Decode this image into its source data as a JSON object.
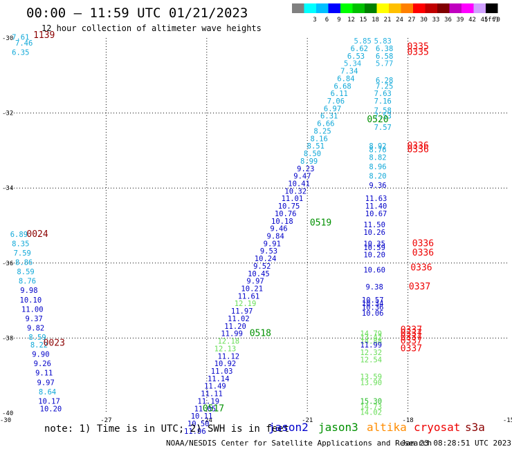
{
  "header": {
    "title": "00:00 – 11:59 UTC 01/21/2023",
    "subtitle": "12 hour collection of altimeter wave heights"
  },
  "scale": {
    "unit": "(ft)",
    "bins": [
      {
        "label": "",
        "color": "#808080"
      },
      {
        "label": "3",
        "color": "#00ffff"
      },
      {
        "label": "6",
        "color": "#00c0ff"
      },
      {
        "label": "9",
        "color": "#0000ff"
      },
      {
        "label": "12",
        "color": "#00ff00"
      },
      {
        "label": "15",
        "color": "#00c000"
      },
      {
        "label": "18",
        "color": "#008000"
      },
      {
        "label": "21",
        "color": "#ffff00"
      },
      {
        "label": "24",
        "color": "#ffc000"
      },
      {
        "label": "27",
        "color": "#ff8000"
      },
      {
        "label": "30",
        "color": "#ff0000"
      },
      {
        "label": "33",
        "color": "#c00000"
      },
      {
        "label": "36",
        "color": "#800000"
      },
      {
        "label": "39",
        "color": "#c000c0"
      },
      {
        "label": "42",
        "color": "#ff00ff"
      },
      {
        "label": "45",
        "color": "#d0a0ff"
      },
      {
        "label": "70",
        "color": "#000000"
      }
    ]
  },
  "footer": {
    "note": "note: 1) Time is in UTC; 2) SWH is in feet",
    "credit": "NOAA/NESDIS Center for Satellite Applications and Research",
    "timestamp": "Jan 23 08:28:51 UTC 2023",
    "legend": [
      {
        "name": "jason2",
        "color": "#0000cc"
      },
      {
        "name": "jason3",
        "color": "#009000"
      },
      {
        "name": "altika",
        "color": "#ff8c00"
      },
      {
        "name": "cryosat",
        "color": "#ee0000"
      },
      {
        "name": "s3a",
        "color": "#8b0000"
      }
    ]
  },
  "chart_data": {
    "type": "scatter",
    "title": "12 hour collection of altimeter wave heights",
    "xlim": [
      -30,
      -15
    ],
    "ylim": [
      -40,
      -30
    ],
    "xticks": [
      "-30",
      "-27",
      "-24",
      "-21",
      "-18",
      "-15"
    ],
    "yticks": [
      "-30",
      "-32",
      "-34",
      "-36",
      "-38",
      "-40"
    ],
    "grid": true,
    "time_labels": [
      {
        "text": "1139",
        "x": -28.85,
        "y": -30.0,
        "color": "#8b0000"
      },
      {
        "text": "0024",
        "x": -29.05,
        "y": -35.3,
        "color": "#8b0000"
      },
      {
        "text": "0023",
        "x": -28.55,
        "y": -38.2,
        "color": "#8b0000"
      },
      {
        "text": "0335",
        "x": -17.7,
        "y": -30.3,
        "color": "#ee0000"
      },
      {
        "text": "0335",
        "x": -17.7,
        "y": -30.45,
        "color": "#ee0000"
      },
      {
        "text": "0336",
        "x": -17.7,
        "y": -32.95,
        "color": "#ee0000"
      },
      {
        "text": "0336",
        "x": -17.7,
        "y": -33.05,
        "color": "#ee0000"
      },
      {
        "text": "0336",
        "x": -17.55,
        "y": -35.55,
        "color": "#ee0000"
      },
      {
        "text": "0336",
        "x": -17.55,
        "y": -35.8,
        "color": "#ee0000"
      },
      {
        "text": "0336",
        "x": -17.6,
        "y": -36.2,
        "color": "#ee0000"
      },
      {
        "text": "0337",
        "x": -17.65,
        "y": -36.7,
        "color": "#ee0000"
      },
      {
        "text": "0337",
        "x": -17.9,
        "y": -37.85,
        "color": "#ee0000"
      },
      {
        "text": "0337",
        "x": -17.9,
        "y": -37.95,
        "color": "#ee0000"
      },
      {
        "text": "0337",
        "x": -17.9,
        "y": -38.05,
        "color": "#ee0000"
      },
      {
        "text": "0337",
        "x": -17.9,
        "y": -38.15,
        "color": "#ee0000"
      },
      {
        "text": "0337",
        "x": -17.9,
        "y": -38.35,
        "color": "#ee0000"
      },
      {
        "text": "0520",
        "x": -18.9,
        "y": -32.25,
        "color": "#009000"
      },
      {
        "text": "0519",
        "x": -20.6,
        "y": -35.0,
        "color": "#009000"
      },
      {
        "text": "0518",
        "x": -22.4,
        "y": -37.95,
        "color": "#009000"
      },
      {
        "text": "0517",
        "x": -23.8,
        "y": -39.95,
        "color": "#009000"
      }
    ],
    "series": [
      {
        "name": "jason2",
        "color_key": "swh",
        "points": [
          {
            "x": -29.55,
            "y": -30.05,
            "v": "7.61"
          },
          {
            "x": -29.45,
            "y": -30.2,
            "v": "7.46"
          },
          {
            "x": -29.55,
            "y": -30.45,
            "v": "6.35"
          },
          {
            "x": -29.6,
            "y": -35.3,
            "v": "6.89"
          },
          {
            "x": -29.55,
            "y": -35.55,
            "v": "8.35"
          },
          {
            "x": -29.5,
            "y": -35.8,
            "v": "7.59"
          },
          {
            "x": -29.45,
            "y": -36.05,
            "v": "8.86"
          },
          {
            "x": -29.4,
            "y": -36.3,
            "v": "8.59"
          },
          {
            "x": -29.35,
            "y": -36.55,
            "v": "8.76"
          },
          {
            "x": -29.3,
            "y": -36.8,
            "v": "9.98"
          },
          {
            "x": -29.25,
            "y": -37.05,
            "v": "10.10"
          },
          {
            "x": -29.2,
            "y": -37.3,
            "v": "11.00"
          },
          {
            "x": -29.15,
            "y": -37.55,
            "v": "9.37"
          },
          {
            "x": -29.1,
            "y": -37.8,
            "v": "9.82"
          },
          {
            "x": -29.05,
            "y": -38.05,
            "v": "8.59"
          },
          {
            "x": -29.0,
            "y": -38.25,
            "v": "8.22"
          },
          {
            "x": -28.95,
            "y": -38.5,
            "v": "9.90"
          },
          {
            "x": -28.9,
            "y": -38.75,
            "v": "9.26"
          },
          {
            "x": -28.85,
            "y": -39.0,
            "v": "9.11"
          },
          {
            "x": -28.8,
            "y": -39.25,
            "v": "9.97"
          },
          {
            "x": -28.75,
            "y": -39.5,
            "v": "8.64"
          },
          {
            "x": -28.7,
            "y": -39.75,
            "v": "10.17"
          },
          {
            "x": -28.65,
            "y": -39.95,
            "v": "10.20"
          }
        ]
      },
      {
        "name": "jason3",
        "color_key": "swh",
        "points": [
          {
            "x": -19.35,
            "y": -30.15,
            "v": "5.85"
          },
          {
            "x": -19.45,
            "y": -30.35,
            "v": "6.62"
          },
          {
            "x": -19.55,
            "y": -30.55,
            "v": "6.53"
          },
          {
            "x": -19.65,
            "y": -30.75,
            "v": "5.34"
          },
          {
            "x": -19.75,
            "y": -30.95,
            "v": "7.34"
          },
          {
            "x": -19.85,
            "y": -31.15,
            "v": "6.84"
          },
          {
            "x": -19.95,
            "y": -31.35,
            "v": "6.68"
          },
          {
            "x": -20.05,
            "y": -31.55,
            "v": "6.11"
          },
          {
            "x": -20.15,
            "y": -31.75,
            "v": "7.06"
          },
          {
            "x": -20.25,
            "y": -31.95,
            "v": "6.97"
          },
          {
            "x": -20.35,
            "y": -32.15,
            "v": "6.31"
          },
          {
            "x": -20.45,
            "y": -32.35,
            "v": "6.66"
          },
          {
            "x": -20.55,
            "y": -32.55,
            "v": "8.25"
          },
          {
            "x": -20.65,
            "y": -32.75,
            "v": "8.16"
          },
          {
            "x": -20.75,
            "y": -32.95,
            "v": "8.51"
          },
          {
            "x": -20.85,
            "y": -33.15,
            "v": "8.50"
          },
          {
            "x": -20.95,
            "y": -33.35,
            "v": "8.99"
          },
          {
            "x": -21.05,
            "y": -33.55,
            "v": "9.23"
          },
          {
            "x": -21.15,
            "y": -33.75,
            "v": "9.47"
          },
          {
            "x": -21.25,
            "y": -33.95,
            "v": "10.41"
          },
          {
            "x": -21.35,
            "y": -34.15,
            "v": "10.32"
          },
          {
            "x": -21.45,
            "y": -34.35,
            "v": "11.01"
          },
          {
            "x": -21.55,
            "y": -34.55,
            "v": "10.75"
          },
          {
            "x": -21.65,
            "y": -34.75,
            "v": "10.76"
          },
          {
            "x": -21.75,
            "y": -34.95,
            "v": "10.18"
          },
          {
            "x": -21.85,
            "y": -35.15,
            "v": "9.46"
          },
          {
            "x": -21.95,
            "y": -35.35,
            "v": "9.84"
          },
          {
            "x": -22.05,
            "y": -35.55,
            "v": "9.91"
          },
          {
            "x": -22.15,
            "y": -35.75,
            "v": "9.53"
          },
          {
            "x": -22.25,
            "y": -35.95,
            "v": "10.24"
          },
          {
            "x": -22.35,
            "y": -36.15,
            "v": "9.52"
          },
          {
            "x": -22.45,
            "y": -36.35,
            "v": "10.45"
          },
          {
            "x": -22.55,
            "y": -36.55,
            "v": "9.97"
          },
          {
            "x": -22.65,
            "y": -36.75,
            "v": "10.21"
          },
          {
            "x": -22.75,
            "y": -36.95,
            "v": "11.61"
          },
          {
            "x": -22.85,
            "y": -37.15,
            "v": "12.19"
          },
          {
            "x": -22.95,
            "y": -37.35,
            "v": "11.97"
          },
          {
            "x": -23.05,
            "y": -37.55,
            "v": "11.02"
          },
          {
            "x": -23.15,
            "y": -37.75,
            "v": "11.20"
          },
          {
            "x": -23.25,
            "y": -37.95,
            "v": "11.99"
          },
          {
            "x": -23.35,
            "y": -38.15,
            "v": "12.18"
          },
          {
            "x": -23.45,
            "y": -38.35,
            "v": "12.13"
          },
          {
            "x": -23.35,
            "y": -38.55,
            "v": "11.12"
          },
          {
            "x": -23.45,
            "y": -38.75,
            "v": "10.92"
          },
          {
            "x": -23.55,
            "y": -38.95,
            "v": "11.03"
          },
          {
            "x": -23.65,
            "y": -39.15,
            "v": "11.14"
          },
          {
            "x": -23.75,
            "y": -39.35,
            "v": "11.49"
          },
          {
            "x": -23.85,
            "y": -39.55,
            "v": "11.11"
          },
          {
            "x": -23.95,
            "y": -39.75,
            "v": "11.19"
          },
          {
            "x": -24.05,
            "y": -39.95,
            "v": "11.05"
          },
          {
            "x": -24.15,
            "y": -40.15,
            "v": "10.11"
          },
          {
            "x": -24.25,
            "y": -40.35,
            "v": "10.50"
          },
          {
            "x": -24.35,
            "y": -40.55,
            "v": "11.96"
          }
        ]
      },
      {
        "name": "cryosat",
        "color_key": "swh",
        "points": [
          {
            "x": -18.75,
            "y": -30.15,
            "v": "5.83"
          },
          {
            "x": -18.7,
            "y": -30.35,
            "v": "6.38"
          },
          {
            "x": -18.7,
            "y": -30.55,
            "v": "6.58"
          },
          {
            "x": -18.7,
            "y": -30.75,
            "v": "5.77"
          },
          {
            "x": -18.7,
            "y": -31.2,
            "v": "6.28"
          },
          {
            "x": -18.7,
            "y": -31.35,
            "v": "7.25"
          },
          {
            "x": -18.75,
            "y": -31.55,
            "v": "7.63"
          },
          {
            "x": -18.75,
            "y": -31.75,
            "v": "7.16"
          },
          {
            "x": -18.75,
            "y": -32.0,
            "v": "7.58"
          },
          {
            "x": -18.75,
            "y": -32.15,
            "v": "7.53"
          },
          {
            "x": -18.75,
            "y": -32.45,
            "v": "7.57"
          },
          {
            "x": -18.9,
            "y": -32.95,
            "v": "8.92"
          },
          {
            "x": -18.9,
            "y": -33.05,
            "v": "8.76"
          },
          {
            "x": -18.9,
            "y": -33.25,
            "v": "8.82"
          },
          {
            "x": -18.9,
            "y": -33.5,
            "v": "8.96"
          },
          {
            "x": -18.9,
            "y": -33.75,
            "v": "8.20"
          },
          {
            "x": -18.9,
            "y": -34.0,
            "v": "9.36"
          },
          {
            "x": -18.95,
            "y": -34.35,
            "v": "11.63"
          },
          {
            "x": -18.95,
            "y": -34.55,
            "v": "11.40"
          },
          {
            "x": -18.95,
            "y": -34.75,
            "v": "10.67"
          },
          {
            "x": -19.0,
            "y": -35.05,
            "v": "11.50"
          },
          {
            "x": -19.0,
            "y": -35.25,
            "v": "10.26"
          },
          {
            "x": -19.0,
            "y": -35.55,
            "v": "10.35"
          },
          {
            "x": -19.0,
            "y": -35.65,
            "v": "10.59"
          },
          {
            "x": -19.0,
            "y": -35.85,
            "v": "10.20"
          },
          {
            "x": -19.0,
            "y": -36.25,
            "v": "10.60"
          },
          {
            "x": -19.0,
            "y": -36.7,
            "v": "9.38"
          },
          {
            "x": -19.05,
            "y": -37.05,
            "v": "10.57"
          },
          {
            "x": -19.05,
            "y": -37.15,
            "v": "10.34"
          },
          {
            "x": -19.05,
            "y": -37.25,
            "v": "10.36"
          },
          {
            "x": -19.05,
            "y": -37.4,
            "v": "10.06"
          },
          {
            "x": -19.1,
            "y": -37.95,
            "v": "14.79"
          },
          {
            "x": -19.1,
            "y": -38.05,
            "v": "13.42"
          },
          {
            "x": -19.1,
            "y": -38.15,
            "v": "14.88"
          },
          {
            "x": -19.1,
            "y": -38.25,
            "v": "11.99"
          },
          {
            "x": -19.1,
            "y": -38.45,
            "v": "12.32"
          },
          {
            "x": -19.1,
            "y": -38.65,
            "v": "12.54"
          },
          {
            "x": -19.1,
            "y": -39.1,
            "v": "13.59"
          },
          {
            "x": -19.1,
            "y": -39.25,
            "v": "13.90"
          },
          {
            "x": -19.1,
            "y": -39.75,
            "v": "15.30"
          },
          {
            "x": -19.1,
            "y": -39.9,
            "v": "14.73"
          },
          {
            "x": -19.1,
            "y": -40.05,
            "v": "14.02"
          }
        ]
      }
    ]
  }
}
